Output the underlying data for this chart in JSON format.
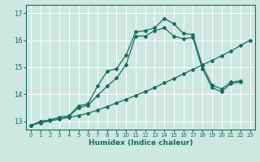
{
  "xlabel": "Humidex (Indice chaleur)",
  "bg_color": "#cce8e0",
  "grid_color": "#ffffff",
  "line_color": "#1a6b5a",
  "xlim": [
    -0.5,
    23.5
  ],
  "ylim": [
    12.7,
    17.3
  ],
  "xticks": [
    0,
    1,
    2,
    3,
    4,
    5,
    6,
    7,
    8,
    9,
    10,
    11,
    12,
    13,
    14,
    15,
    16,
    17,
    18,
    19,
    20,
    21,
    22,
    23
  ],
  "yticks": [
    13,
    14,
    15,
    16,
    17
  ],
  "line1_x": [
    0,
    1,
    2,
    3,
    4,
    5,
    6,
    7,
    8,
    9,
    10,
    11,
    12,
    13,
    14,
    15,
    16,
    17,
    18,
    19,
    20,
    21,
    22
  ],
  "line1_y": [
    12.85,
    13.0,
    13.05,
    13.15,
    13.2,
    13.58,
    13.65,
    14.3,
    14.85,
    14.95,
    15.45,
    16.3,
    16.35,
    16.45,
    16.8,
    16.6,
    16.25,
    16.2,
    15.05,
    14.35,
    14.2,
    14.45,
    14.5
  ],
  "line2_x": [
    0,
    1,
    2,
    3,
    4,
    5,
    6,
    7,
    8,
    9,
    10,
    11,
    12,
    13,
    14,
    15,
    16,
    17,
    18,
    19,
    20,
    21,
    22
  ],
  "line2_y": [
    12.85,
    13.0,
    13.05,
    13.15,
    13.2,
    13.5,
    13.6,
    13.95,
    14.3,
    14.6,
    15.1,
    16.15,
    16.15,
    16.35,
    16.45,
    16.15,
    16.05,
    16.1,
    14.95,
    14.25,
    14.1,
    14.4,
    14.45
  ],
  "line3_x": [
    0,
    1,
    2,
    3,
    4,
    5,
    6,
    7,
    8,
    9,
    10,
    11,
    12,
    13,
    14,
    15,
    16,
    17,
    18,
    19,
    20,
    21,
    22,
    23
  ],
  "line3_y": [
    12.85,
    12.95,
    13.02,
    13.08,
    13.15,
    13.22,
    13.3,
    13.42,
    13.55,
    13.68,
    13.82,
    13.96,
    14.1,
    14.25,
    14.42,
    14.58,
    14.75,
    14.92,
    15.08,
    15.25,
    15.42,
    15.6,
    15.8,
    16.0
  ]
}
